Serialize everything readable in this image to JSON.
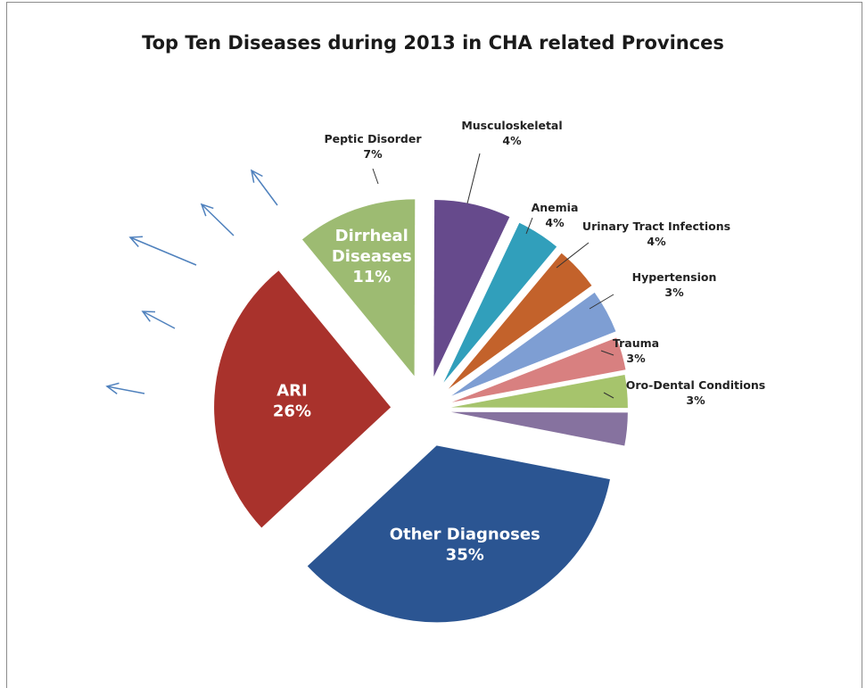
{
  "chart_data": {
    "type": "pie",
    "title": "Top Ten Diseases during 2013 in CHA related Provinces",
    "slices": [
      {
        "label": "Other Diagnoses",
        "value": 35,
        "pct_label": "35%",
        "color": "#2b5592"
      },
      {
        "label": "ARI",
        "value": 26,
        "pct_label": "26%",
        "color": "#a9322c"
      },
      {
        "label": "Dirrheal Diseases",
        "value": 11,
        "pct_label": "11%",
        "color": "#9dbb72"
      },
      {
        "label": "Peptic Disorder",
        "value": 7,
        "pct_label": "7%",
        "color": "#664a8c"
      },
      {
        "label": "Musculoskeletal",
        "value": 4,
        "pct_label": "4%",
        "color": "#319fbb"
      },
      {
        "label": "Anemia",
        "value": 4,
        "pct_label": "4%",
        "color": "#c3622b"
      },
      {
        "label": "Urinary Tract Infections",
        "value": 4,
        "pct_label": "4%",
        "color": "#7e9ed3"
      },
      {
        "label": "Hypertension",
        "value": 3,
        "pct_label": "3%",
        "color": "#d88080"
      },
      {
        "label": "Trauma",
        "value": 3,
        "pct_label": "3%",
        "color": "#a6c46c"
      },
      {
        "label": "Oro-Dental Conditions",
        "value": 3,
        "pct_label": "3%",
        "color": "#86729f"
      }
    ]
  },
  "arrow_color": "#4f81bd"
}
